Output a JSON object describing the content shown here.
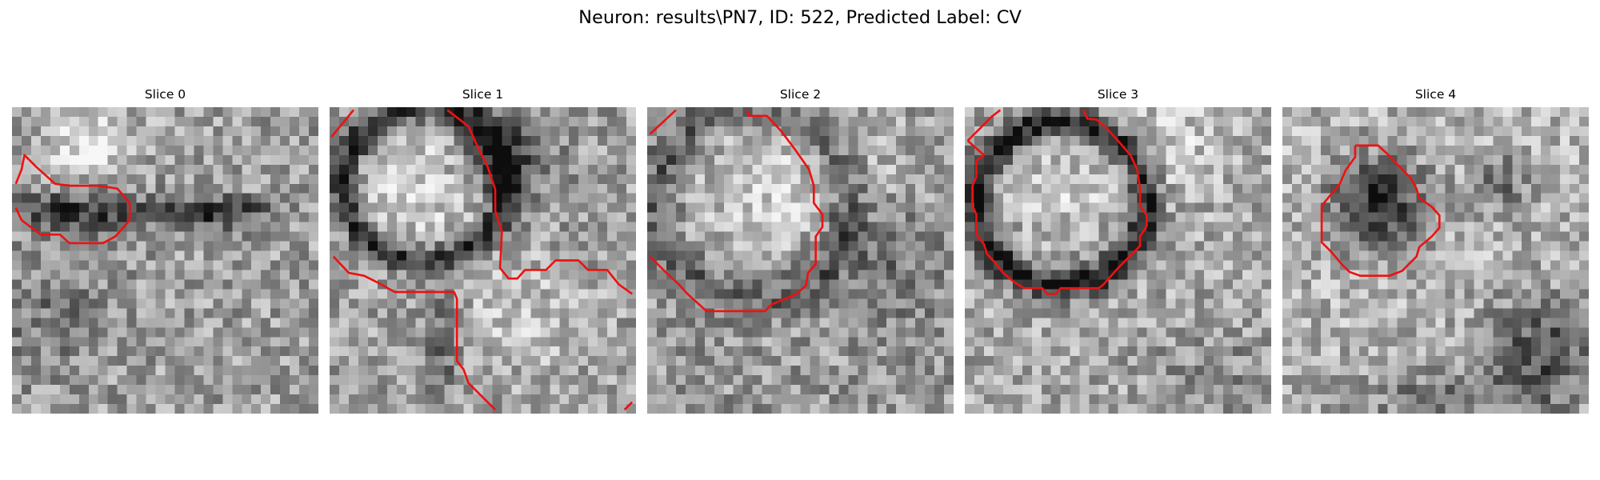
{
  "figure": {
    "title": "Neuron: results\\PN7, ID: 522, Predicted Label: CV"
  },
  "slices": [
    {
      "title": "Slice 0"
    },
    {
      "title": "Slice 1"
    },
    {
      "title": "Slice 2"
    },
    {
      "title": "Slice 3"
    },
    {
      "title": "Slice 4"
    }
  ],
  "colors": {
    "contour": "#ee1111",
    "background": "#ffffff",
    "colormap": "grayscale"
  }
}
